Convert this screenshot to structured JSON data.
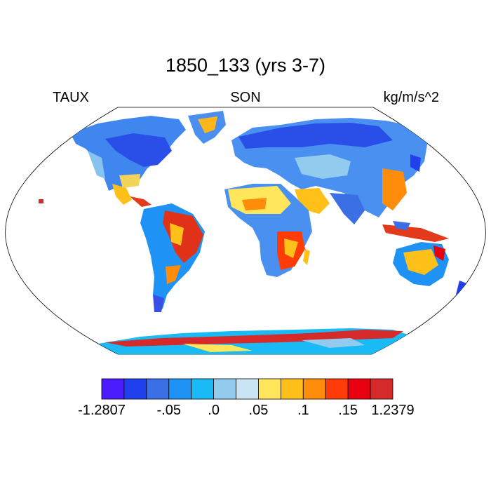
{
  "title": "1850_133 (yrs 3-7)",
  "left_label": "TAUX",
  "center_label": "SON",
  "right_label": "kg/m/s^2",
  "projection": "Robinson",
  "colorbar": {
    "colors": [
      "#4a1bff",
      "#2040ee",
      "#3a6fe6",
      "#1e93f5",
      "#1abaf5",
      "#92cbee",
      "#c8e4f5",
      "#ffe65a",
      "#ffc01a",
      "#ff8c0a",
      "#ff3c08",
      "#e80010",
      "#d62a2a"
    ],
    "tick_labels": [
      "-1.2807",
      "-.05",
      ".0",
      ".05",
      ".1",
      ".15",
      "1.2379"
    ]
  }
}
